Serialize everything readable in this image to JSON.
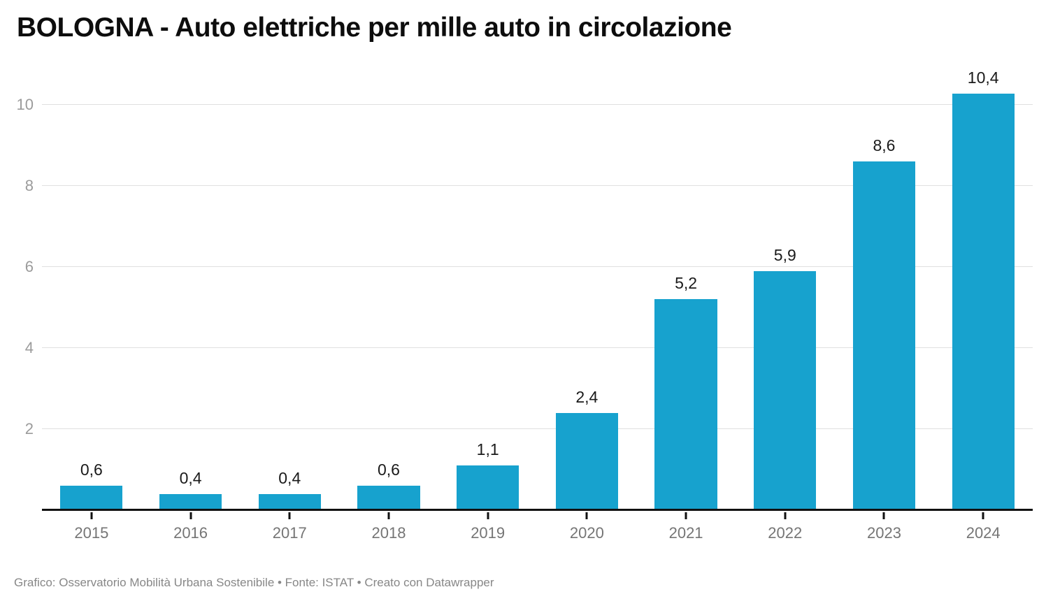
{
  "chart_data": {
    "type": "bar",
    "title": "BOLOGNA - Auto elettriche per mille auto in circolazione",
    "categories": [
      "2015",
      "2016",
      "2017",
      "2018",
      "2019",
      "2020",
      "2021",
      "2022",
      "2023",
      "2024"
    ],
    "values": [
      0.6,
      0.4,
      0.4,
      0.6,
      1.1,
      2.4,
      5.2,
      5.9,
      8.6,
      10.4
    ],
    "value_labels": [
      "0,6",
      "0,4",
      "0,4",
      "0,6",
      "1,1",
      "2,4",
      "5,2",
      "5,9",
      "8,6",
      "10,4"
    ],
    "xlabel": "",
    "ylabel": "",
    "y_ticks": [
      2,
      4,
      6,
      8,
      10
    ],
    "ylim": [
      0,
      10.86
    ],
    "grid": "horizontal",
    "legend": "none",
    "bar_color": "#17a2ce"
  },
  "footer": {
    "text": "Grafico: Osservatorio Mobilità Urbana Sostenibile • Fonte: ISTAT • Creato con Datawrapper"
  },
  "colors": {
    "bar": "#17a2ce",
    "gridline": "#e0e0e0",
    "axis_line": "#111111",
    "y_label": "#9b9b9b",
    "x_label": "#757575",
    "value_label": "#1a1a1a",
    "title": "#0d0d0d",
    "footer": "#878787"
  }
}
